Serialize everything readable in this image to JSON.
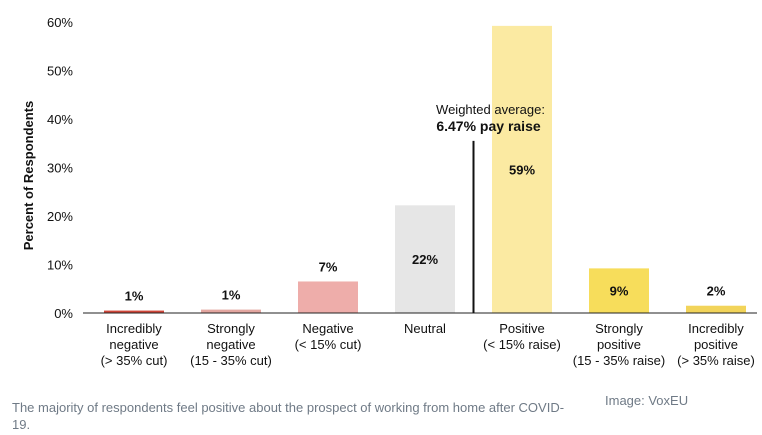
{
  "chart_data": {
    "type": "bar",
    "ylabel": "Percent of Respondents",
    "ylim": [
      0,
      60
    ],
    "yticks": [
      0,
      10,
      20,
      30,
      40,
      50,
      60
    ],
    "ytick_labels": [
      "0%",
      "10%",
      "20%",
      "30%",
      "40%",
      "50%",
      "60%"
    ],
    "categories": [
      [
        "Incredibly",
        "negative",
        "(> 35% cut)"
      ],
      [
        "Strongly",
        "negative",
        "(15 - 35% cut)"
      ],
      [
        "Negative",
        "(< 15% cut)"
      ],
      [
        "Neutral"
      ],
      [
        "Positive",
        "(< 15% raise)"
      ],
      [
        "Strongly",
        "positive",
        "(15 - 35% raise)"
      ],
      [
        "Incredibly",
        "positive",
        "(> 35% raise)"
      ]
    ],
    "values": [
      0.5,
      0.7,
      6.5,
      22.2,
      59.2,
      9.2,
      1.5
    ],
    "data_labels": [
      "1%",
      "1%",
      "7%",
      "22%",
      "59%",
      "9%",
      "2%"
    ],
    "colors": [
      "#d0463a",
      "#e3a6a0",
      "#eeadaa",
      "#e6e6e6",
      "#fbeaa2",
      "#f7dd5b",
      "#f2d45a"
    ],
    "annotation": {
      "line1": "Weighted average:",
      "line2": "6.47% pay raise",
      "position_between": [
        3,
        4
      ],
      "top_value": 35.5
    }
  },
  "caption": "The majority of respondents feel positive about the prospect of working from home after COVID-19.",
  "credit": "Image: VoxEU"
}
